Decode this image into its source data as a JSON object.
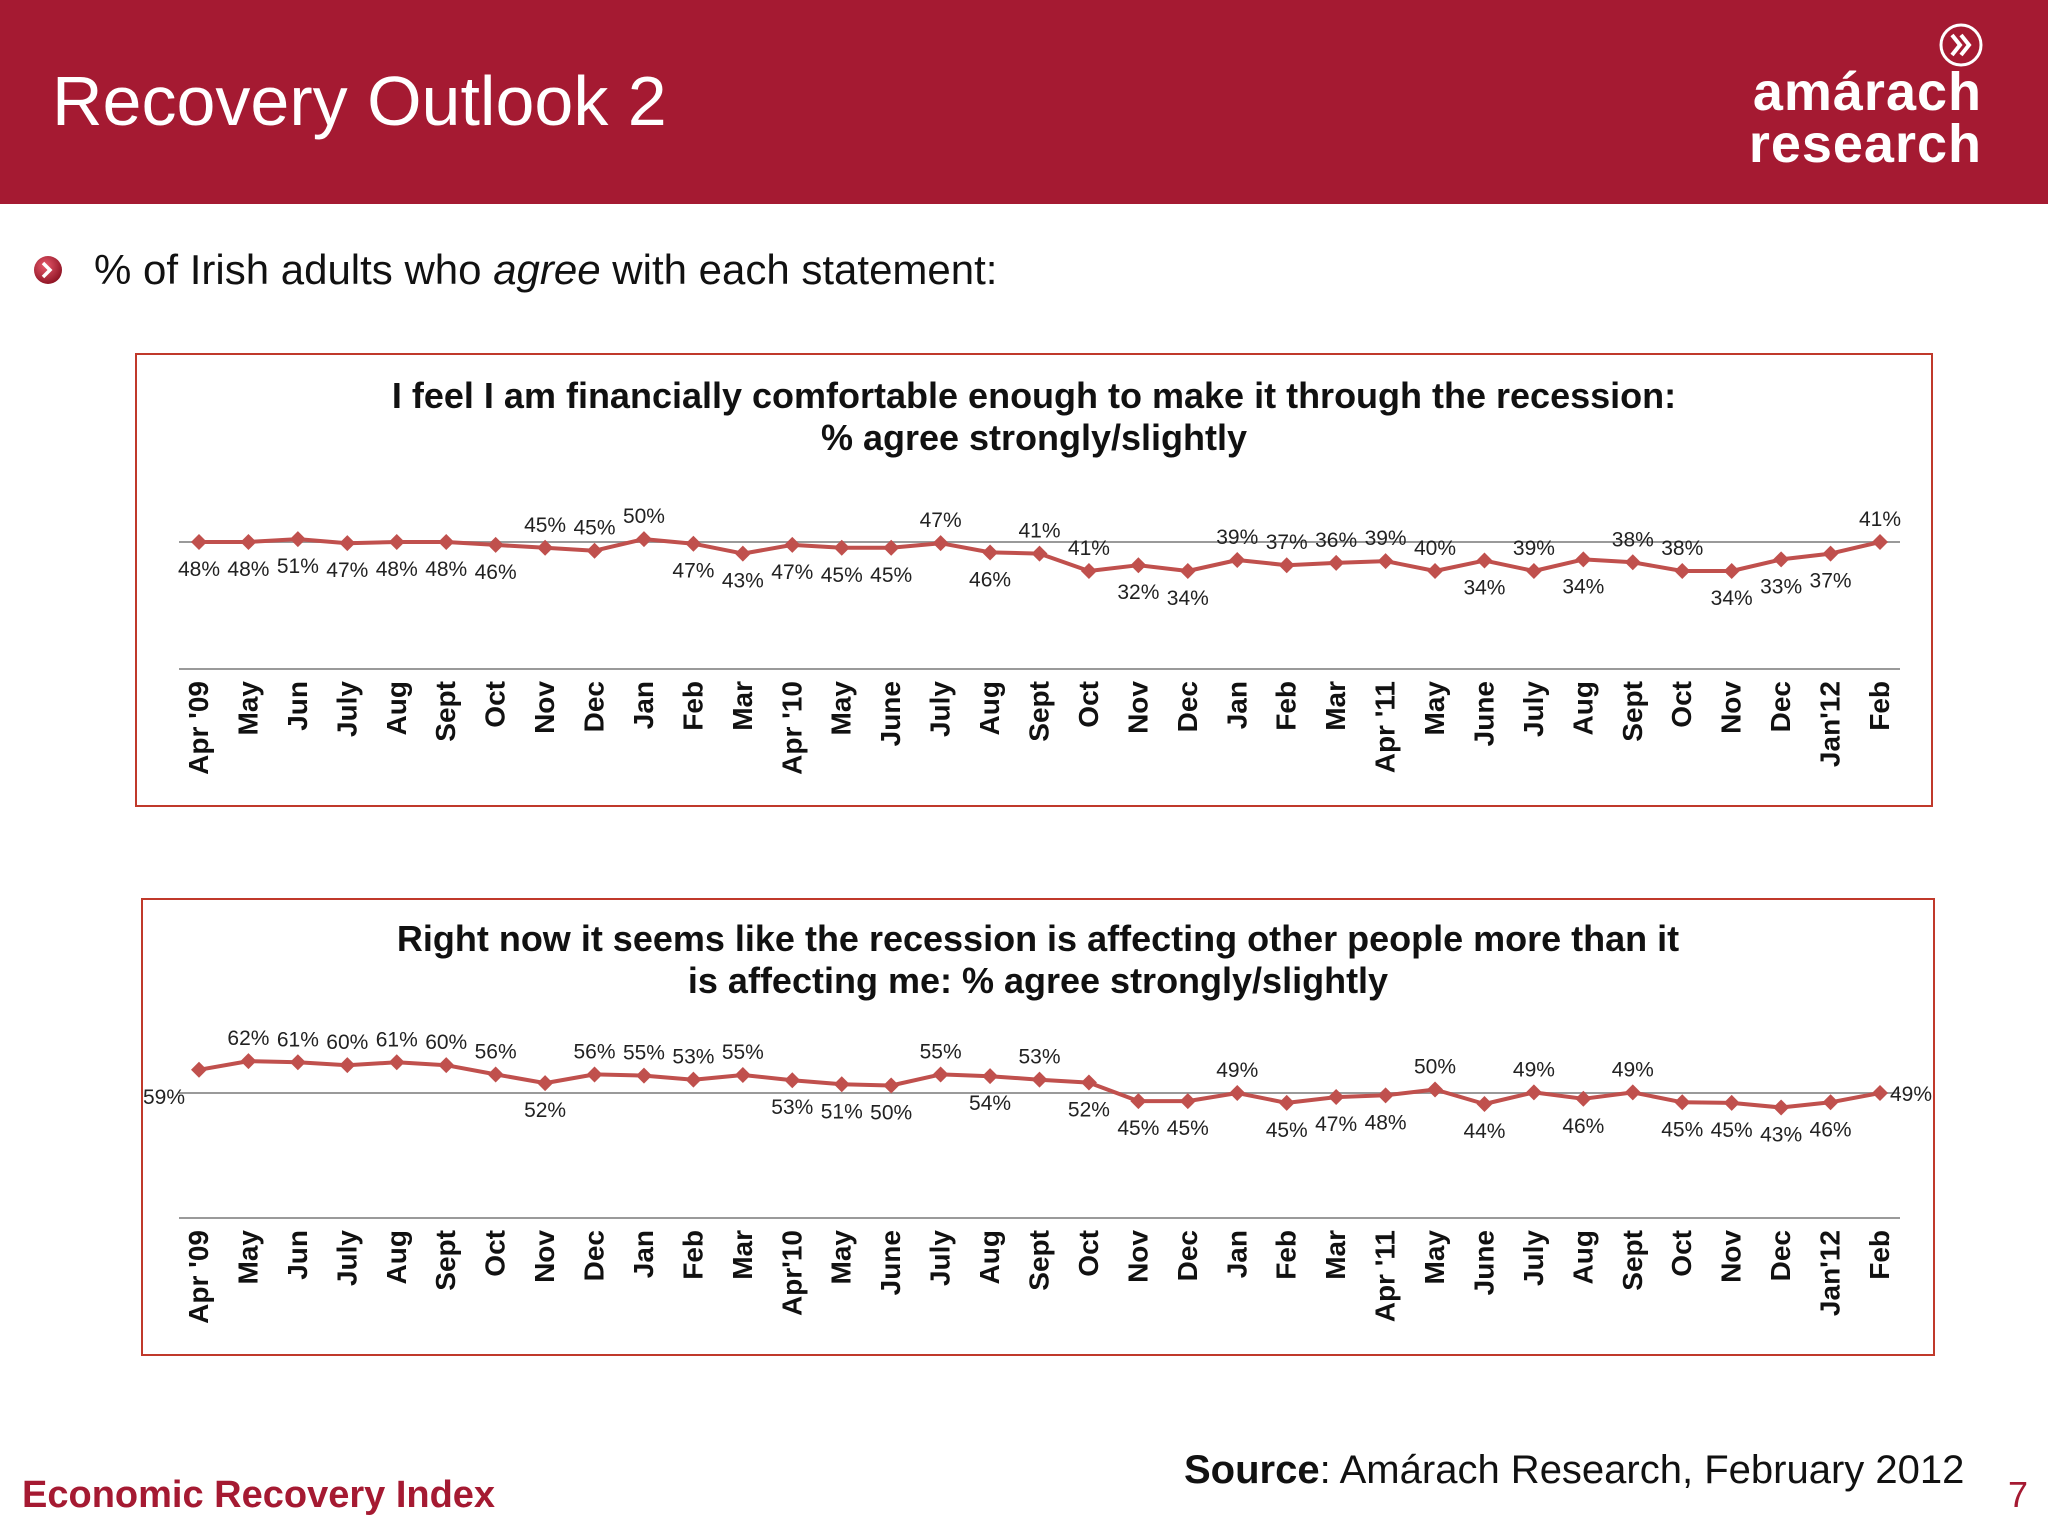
{
  "header": {
    "title": "Recovery Outlook 2"
  },
  "logo": {
    "line1": "amárach",
    "line2": "research"
  },
  "bullet": {
    "pre": "% of Irish adults who ",
    "em": "agree",
    "post": " with each statement:"
  },
  "footer": {
    "left": "Economic Recovery Index",
    "source_bold": "Source",
    "source_rest": ": Amárach Research, February 2012",
    "page": "7"
  },
  "colors": {
    "brand": "#a51a32",
    "series": "#c0504d",
    "border": "#c0392b"
  },
  "chart_data": [
    {
      "type": "line",
      "title": "I feel I am financially comfortable enough to make it through the recession:\n% agree strongly/slightly",
      "categories": [
        "Apr '09",
        "May",
        "Jun",
        "July",
        "Aug",
        "Sept",
        "Oct",
        "Nov",
        "Dec",
        "Jan",
        "Feb",
        "Mar",
        "Apr '10",
        "May",
        "June",
        "July",
        "Aug",
        "Sept",
        "Oct",
        "Nov",
        "Dec",
        "Jan",
        "Feb",
        "Mar",
        "Apr '11",
        "May",
        "June",
        "July",
        "Aug",
        "Sept",
        "Oct",
        "Nov",
        "Dec",
        "Jan'12",
        "Feb"
      ],
      "values": [
        48,
        48,
        51,
        47,
        48,
        48,
        46,
        45,
        45,
        50,
        47,
        43,
        47,
        45,
        45,
        47,
        46,
        41,
        41,
        32,
        34,
        39,
        37,
        36,
        39,
        40,
        34,
        39,
        34,
        38,
        38,
        34,
        33,
        37,
        41
      ],
      "label_text": [
        "48%",
        "48%",
        "51%",
        "47%",
        "48%",
        "48%",
        "46%",
        "45%",
        "45%",
        "50%",
        "47%",
        "43%",
        "47%",
        "45%",
        "45%",
        "47%",
        "46%",
        "41%",
        "41%",
        "32%",
        "34%",
        "39%",
        "37%",
        "36%",
        "39%",
        "40%",
        "34%",
        "39%",
        "34%",
        "38%",
        "38%",
        "34%",
        "33%",
        "37%",
        "41%"
      ],
      "label_pos": [
        "below",
        "below",
        "below",
        "below",
        "below",
        "below",
        "below",
        "above",
        "above",
        "above",
        "below",
        "below",
        "below",
        "below",
        "below",
        "above",
        "below",
        "above",
        "above",
        "below",
        "below",
        "above",
        "above",
        "above",
        "above",
        "above",
        "below",
        "above",
        "below",
        "above",
        "above",
        "below",
        "below",
        "below",
        "above"
      ],
      "line_values": [
        48,
        48,
        49,
        47.6,
        48,
        48,
        47,
        46,
        45,
        49,
        47.4,
        44,
        47,
        46,
        46,
        47.6,
        44.4,
        44,
        38,
        40,
        38,
        41.8,
        40,
        40.8,
        41.4,
        38,
        41.6,
        38,
        42,
        41,
        38,
        38,
        42,
        44,
        48
      ],
      "ylim": [
        20,
        80
      ],
      "baseline": 48,
      "legend": "none",
      "grid": false
    },
    {
      "type": "line",
      "title": "Right now it seems like the recession is affecting other people more than it\nis affecting me: % agree strongly/slightly",
      "categories": [
        "Apr '09",
        "May",
        "Jun",
        "July",
        "Aug",
        "Sept",
        "Oct",
        "Nov",
        "Dec",
        "Jan",
        "Feb",
        "Mar",
        "Apr'10",
        "May",
        "June",
        "July",
        "Aug",
        "Sept",
        "Oct",
        "Nov",
        "Dec",
        "Jan",
        "Feb",
        "Mar",
        "Apr '11",
        "May",
        "June",
        "July",
        "Aug",
        "Sept",
        "Oct",
        "Nov",
        "Dec",
        "Jan'12",
        "Feb"
      ],
      "values": [
        59,
        62,
        61,
        60,
        61,
        60,
        56,
        52,
        56,
        55,
        53,
        55,
        53,
        51,
        50,
        55,
        54,
        53,
        52,
        45,
        45,
        49,
        45,
        47,
        48,
        50,
        44,
        49,
        46,
        49,
        45,
        45,
        43,
        46,
        49
      ],
      "label_text": [
        "59%",
        "62%",
        "61%",
        "60%",
        "61%",
        "60%",
        "56%",
        "52%",
        "56%",
        "55%",
        "53%",
        "55%",
        "53%",
        "51%",
        "50%",
        "55%",
        "54%",
        "53%",
        "52%",
        "45%",
        "45%",
        "49%",
        "45%",
        "47%",
        "48%",
        "50%",
        "44%",
        "49%",
        "46%",
        "49%",
        "45%",
        "45%",
        "43%",
        "46%",
        "49%"
      ],
      "label_pos": [
        "left",
        "above",
        "above",
        "above",
        "above",
        "above",
        "above",
        "below",
        "above",
        "above",
        "above",
        "above",
        "below",
        "below",
        "below",
        "above",
        "below",
        "above",
        "below",
        "below",
        "below",
        "above",
        "below",
        "below",
        "below",
        "above",
        "below",
        "above",
        "below",
        "above",
        "below",
        "below",
        "below",
        "below",
        "right"
      ],
      "line_values": [
        59,
        62,
        61.6,
        60.6,
        61.6,
        60.6,
        57.4,
        54.4,
        57.4,
        57,
        55.6,
        57.2,
        55.4,
        54,
        53.6,
        57.4,
        56.8,
        55.6,
        54.6,
        48.2,
        48.2,
        51,
        47.6,
        49.6,
        50.2,
        52.2,
        47.2,
        51.2,
        49,
        51.2,
        47.8,
        47.6,
        46,
        47.8,
        51
      ],
      "ylim": [
        20,
        80
      ],
      "baseline": 51,
      "legend": "none",
      "grid": false
    }
  ]
}
